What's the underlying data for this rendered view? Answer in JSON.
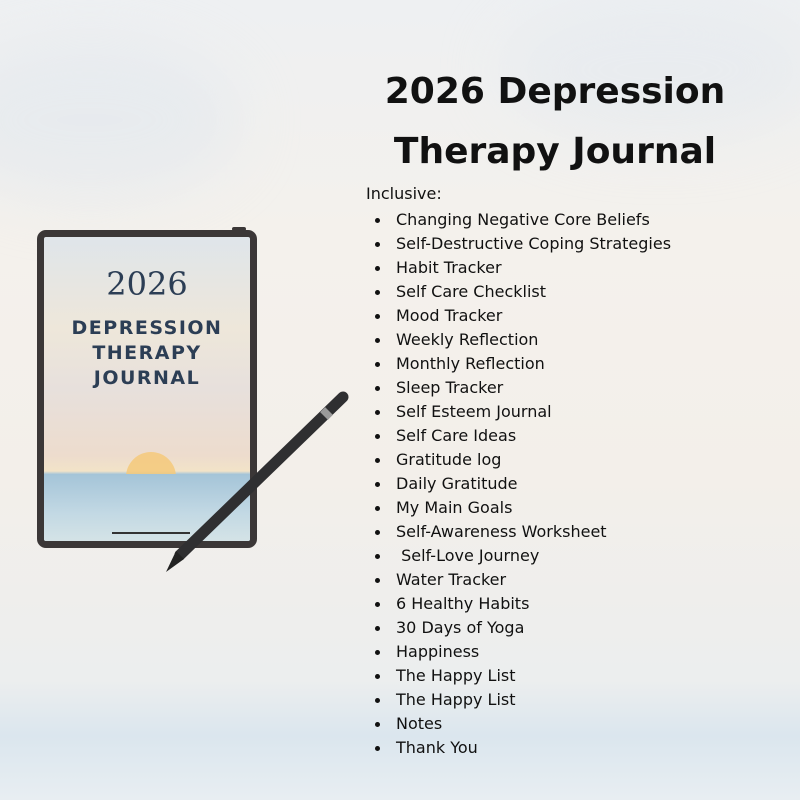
{
  "title": {
    "line1": "2026 Depression",
    "line2": "Therapy Journal"
  },
  "intro": "Inclusive:",
  "items": [
    "Changing Negative Core Beliefs",
    "Self-Destructive Coping Strategies",
    "Habit Tracker",
    "Self Care Checklist",
    "Mood Tracker",
    "Weekly Reflection",
    "Monthly Reflection",
    "Sleep Tracker",
    "Self Esteem Journal",
    "Self Care Ideas",
    "Gratitude log",
    "Daily Gratitude",
    "My Main Goals",
    "Self-Awareness Worksheet",
    " Self-Love Journey",
    "Water Tracker",
    "6 Healthy Habits",
    "30 Days of Yoga",
    "Happiness",
    "The Happy List",
    "The Happy List",
    "Notes",
    "Thank You"
  ],
  "cover": {
    "year": "2026",
    "line1": "DEPRESSION",
    "line2": "THERAPY",
    "line3": "JOURNAL"
  },
  "colors": {
    "cover_text": "#2c3e55",
    "device_frame": "#3b3737",
    "sun": "#f4c97a"
  }
}
